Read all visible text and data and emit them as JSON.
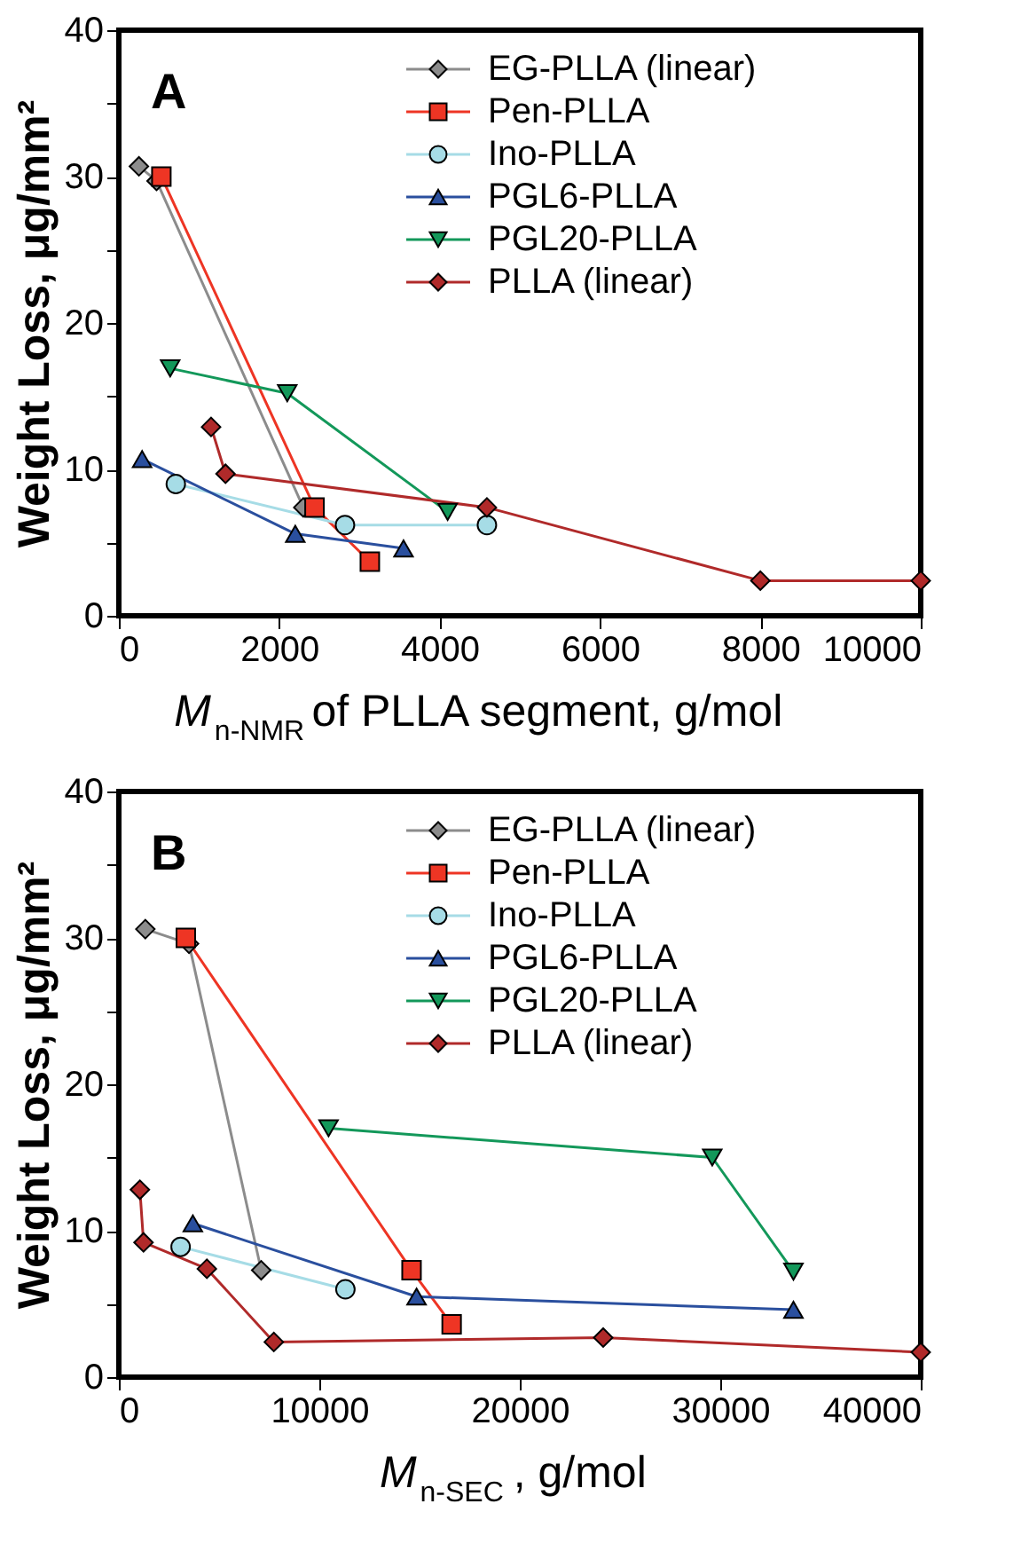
{
  "chart_data": [
    {
      "type": "line",
      "annotations": [
        "A"
      ],
      "xlabel": "M$_{n-NMR}$ of PLLA segment, g/mol",
      "ylabel": "Weight Loss, μg/mm²",
      "xlim": [
        0,
        10000
      ],
      "ylim": [
        0,
        40
      ],
      "xticks": [
        0,
        2000,
        4000,
        6000,
        8000,
        10000
      ],
      "yticks": [
        0,
        {
          "value": 5,
          "label": null
        },
        10,
        {
          "value": 15,
          "label": null
        },
        20,
        {
          "value": 25,
          "label": null
        },
        30,
        {
          "value": 35,
          "label": null
        },
        40
      ],
      "grid": false,
      "legend": "top right",
      "series": [
        {
          "name": "EG-PLLA (linear)",
          "color": "#8c8c8c",
          "marker": "diamond",
          "x": [
            250,
            470,
            2300
          ],
          "values": [
            30.7,
            29.7,
            7.4
          ]
        },
        {
          "name": "Pen-PLLA",
          "color": "#ee3524",
          "marker": "square",
          "x": [
            530,
            2440,
            3130
          ],
          "values": [
            30.0,
            7.4,
            3.7
          ]
        },
        {
          "name": "Ino-PLLA",
          "color": "#a6dce6",
          "marker": "circle",
          "x": [
            710,
            2820,
            4590
          ],
          "values": [
            9.0,
            6.2,
            6.2
          ]
        },
        {
          "name": "PGL6-PLLA",
          "color": "#2a4f9e",
          "marker": "triangle",
          "x": [
            290,
            2200,
            3550
          ],
          "values": [
            10.7,
            5.6,
            4.6
          ]
        },
        {
          "name": "PGL20-PLLA",
          "color": "#13985a",
          "marker": "triangle-down",
          "x": [
            640,
            2100,
            4100
          ],
          "values": [
            16.9,
            15.2,
            7.1
          ]
        },
        {
          "name": "PLLA (linear)",
          "color": "#b02a2a",
          "marker": "diamond",
          "x": [
            1150,
            1330,
            4590,
            8000,
            10000
          ],
          "values": [
            12.9,
            9.7,
            7.4,
            2.4,
            2.4
          ]
        }
      ]
    },
    {
      "type": "line",
      "annotations": [
        "B"
      ],
      "xlabel": "M$_{n-SEC}$, g/mol",
      "ylabel": "Weight Loss, μg/mm²",
      "xlim": [
        0,
        40000
      ],
      "ylim": [
        0,
        40
      ],
      "xticks": [
        0,
        10000,
        20000,
        30000,
        40000
      ],
      "yticks": [
        0,
        {
          "value": 5,
          "label": null
        },
        10,
        {
          "value": 15,
          "label": null
        },
        20,
        {
          "value": 25,
          "label": null
        },
        30,
        {
          "value": 35,
          "label": null
        },
        40
      ],
      "grid": false,
      "legend": "top right",
      "series": [
        {
          "name": "EG-PLLA (linear)",
          "color": "#8c8c8c",
          "marker": "diamond",
          "x": [
            1320,
            3500,
            7100
          ],
          "values": [
            30.6,
            29.6,
            7.3
          ]
        },
        {
          "name": "Pen-PLLA",
          "color": "#ee3524",
          "marker": "square",
          "x": [
            3340,
            14600,
            16600
          ],
          "values": [
            30.0,
            7.3,
            3.6
          ]
        },
        {
          "name": "Ino-PLLA",
          "color": "#a6dce6",
          "marker": "circle",
          "x": [
            3080,
            11300
          ],
          "values": [
            8.9,
            6.0
          ]
        },
        {
          "name": "PGL6-PLLA",
          "color": "#2a4f9e",
          "marker": "triangle",
          "x": [
            3690,
            14850,
            33650
          ],
          "values": [
            10.5,
            5.5,
            4.6
          ]
        },
        {
          "name": "PGL20-PLLA",
          "color": "#13985a",
          "marker": "triangle-down",
          "x": [
            10460,
            29600,
            33650
          ],
          "values": [
            17.0,
            15.0,
            7.2
          ]
        },
        {
          "name": "PLLA (linear)",
          "color": "#b02a2a",
          "marker": "diamond",
          "x": [
            1050,
            1230,
            4390,
            7730,
            24160,
            40000
          ],
          "values": [
            12.8,
            9.2,
            7.4,
            2.4,
            2.7,
            1.7
          ]
        }
      ]
    }
  ]
}
